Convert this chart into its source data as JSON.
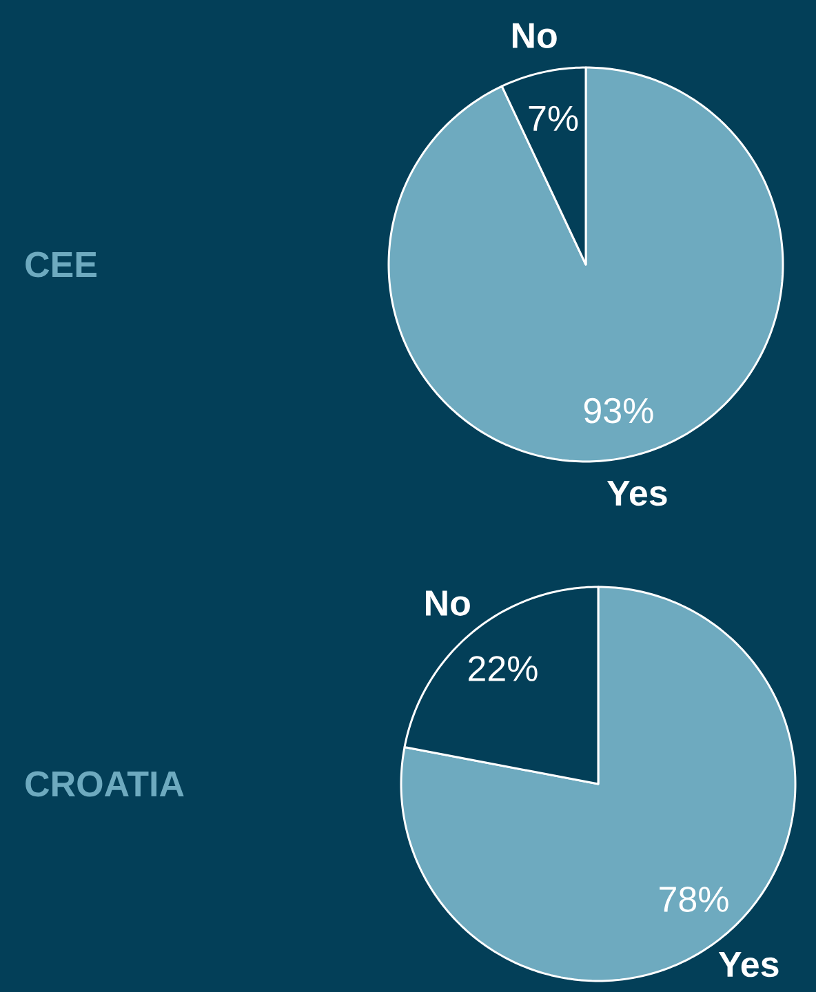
{
  "chart_data": [
    {
      "type": "pie",
      "title": "CEE",
      "categories": [
        "Yes",
        "No"
      ],
      "values": [
        93,
        7
      ],
      "colors": [
        "#6eaabf",
        "#033f58"
      ],
      "value_labels": [
        "93%",
        "7%"
      ]
    },
    {
      "type": "pie",
      "title": "CROATIA",
      "categories": [
        "Yes",
        "No"
      ],
      "values": [
        78,
        22
      ],
      "colors": [
        "#6eaabf",
        "#033f58"
      ],
      "value_labels": [
        "78%",
        "22%"
      ]
    }
  ]
}
